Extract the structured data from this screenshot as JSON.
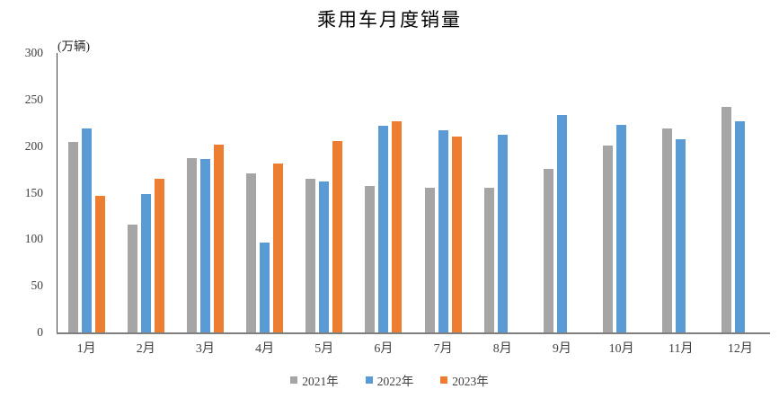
{
  "chart_data": {
    "type": "bar",
    "title": "乘用车月度销量",
    "ylabel": "(万辆)",
    "xlabel": "",
    "categories": [
      "1月",
      "2月",
      "3月",
      "4月",
      "5月",
      "6月",
      "7月",
      "8月",
      "9月",
      "10月",
      "11月",
      "12月"
    ],
    "series": [
      {
        "name": "2021年",
        "color": "#A5A5A5",
        "values": [
          204.5,
          115.6,
          187.4,
          170.4,
          164.6,
          156.9,
          155.1,
          155.2,
          175.1,
          200.7,
          219.2,
          242.2
        ]
      },
      {
        "name": "2022年",
        "color": "#5B9BD5",
        "values": [
          218.6,
          148.7,
          186.4,
          96.5,
          162.3,
          222.2,
          217.4,
          212.5,
          233.2,
          223.1,
          207.5,
          226.3
        ]
      },
      {
        "name": "2023年",
        "color": "#ED7D31",
        "values": [
          146.9,
          165.3,
          201.7,
          181.1,
          205.2,
          226.8,
          210.0,
          null,
          null,
          null,
          null,
          null
        ]
      }
    ],
    "ylim": [
      0,
      300
    ],
    "yticks": [
      0,
      50,
      100,
      150,
      200,
      250,
      300
    ],
    "grid": false,
    "legend_position": "bottom",
    "axis_colors": {
      "y_axis": "#404040",
      "x_axis": "#7f7f7f"
    }
  }
}
